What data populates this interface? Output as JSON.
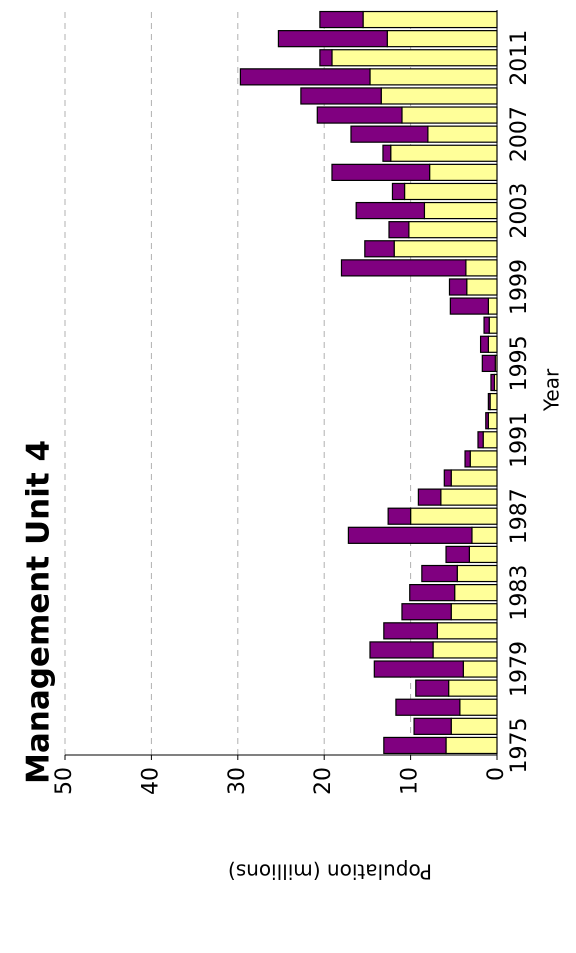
{
  "chart_data": {
    "type": "stacked-bar",
    "title": "Management Unit 4",
    "x_label": "Year",
    "y_label": "Population (millions)",
    "categories": [
      "1975",
      null,
      null,
      null,
      "1979",
      null,
      null,
      null,
      "1983",
      null,
      null,
      null,
      "1987",
      null,
      null,
      null,
      "1991",
      null,
      null,
      null,
      "1995",
      null,
      null,
      null,
      "1999",
      null,
      null,
      null,
      "2003",
      null,
      null,
      null,
      "2007",
      null,
      null,
      null,
      "2011",
      null,
      null
    ],
    "series": [
      {
        "color": "#ffff99",
        "values": [
          5.9,
          5.3,
          4.3,
          5.6,
          3.9,
          7.4,
          6.9,
          5.3,
          4.9,
          4.6,
          3.2,
          2.9,
          10.0,
          6.5,
          5.3,
          3.1,
          1.6,
          1.0,
          0.8,
          0.3,
          0.2,
          1.0,
          0.9,
          1.0,
          3.5,
          3.6,
          11.9,
          10.2,
          8.4,
          10.7,
          7.8,
          12.3,
          8.0,
          11.0,
          13.4,
          14.7,
          19.1,
          12.7,
          15.5
        ]
      },
      {
        "color": "#800080",
        "values": [
          7.2,
          4.3,
          7.4,
          3.8,
          10.3,
          7.3,
          6.2,
          5.7,
          5.2,
          4.1,
          2.7,
          14.3,
          2.6,
          2.6,
          0.8,
          0.6,
          0.6,
          0.3,
          0.2,
          0.4,
          1.5,
          0.9,
          0.6,
          4.4,
          2.0,
          14.4,
          3.4,
          2.3,
          7.9,
          1.4,
          11.3,
          0.9,
          8.9,
          9.8,
          9.3,
          15.0,
          1.4,
          12.6,
          5.0
        ]
      }
    ],
    "ylim": [
      0,
      50
    ],
    "yticks": [
      0,
      10,
      20,
      30,
      40,
      50
    ],
    "grid": true
  }
}
